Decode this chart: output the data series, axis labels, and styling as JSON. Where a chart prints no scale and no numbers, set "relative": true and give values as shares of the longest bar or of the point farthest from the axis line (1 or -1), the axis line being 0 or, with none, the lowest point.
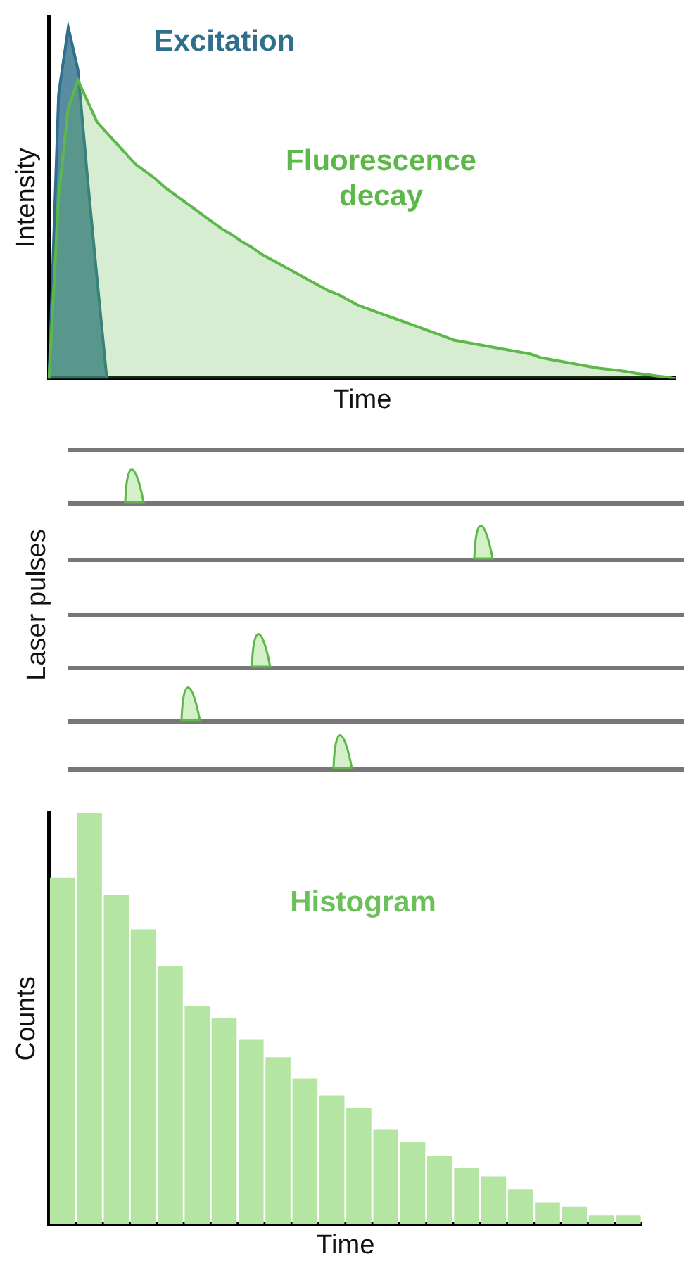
{
  "chart_data": [
    {
      "type": "area",
      "xlabel": "Time",
      "ylabel": "Intensity",
      "relative": true,
      "legend": false,
      "categories": [
        null,
        null,
        null,
        null,
        null,
        null,
        null,
        null,
        null,
        null,
        null,
        null,
        null,
        null,
        null,
        null,
        null,
        null,
        null,
        null,
        null,
        null,
        null,
        null,
        null,
        null,
        null,
        null,
        null,
        null,
        null,
        null,
        null,
        null,
        null,
        null,
        null,
        null,
        null,
        null,
        null,
        null,
        null,
        null,
        null,
        null,
        null,
        null,
        null,
        null,
        null,
        null,
        null,
        null,
        null,
        null,
        null,
        null,
        null,
        null,
        null,
        null,
        null,
        null,
        null,
        null
      ],
      "series": [
        {
          "name": "Fluorescence decay",
          "color": "#5cb848",
          "values": [
            0,
            0.52,
            0.77,
            0.85,
            0.79,
            0.73,
            0.7,
            0.67,
            0.64,
            0.61,
            0.59,
            0.57,
            0.545,
            0.525,
            0.505,
            0.485,
            0.465,
            0.445,
            0.425,
            0.41,
            0.39,
            0.375,
            0.355,
            0.34,
            0.325,
            0.31,
            0.295,
            0.28,
            0.265,
            0.25,
            0.24,
            0.225,
            0.21,
            0.2,
            0.19,
            0.18,
            0.17,
            0.16,
            0.15,
            0.14,
            0.13,
            0.12,
            0.11,
            0.105,
            0.1,
            0.095,
            0.09,
            0.085,
            0.08,
            0.075,
            0.07,
            0.06,
            0.055,
            0.05,
            0.045,
            0.04,
            0.035,
            0.03,
            0.027,
            0.024,
            0.02,
            0.015,
            0.012,
            0.008,
            0.005,
            0
          ]
        },
        {
          "name": "Excitation",
          "color": "#2f6f8c",
          "values": [
            0,
            0.81,
            1,
            0.88,
            0.57,
            0.28,
            0,
            null,
            null,
            null,
            null,
            null,
            null,
            null,
            null,
            null,
            null,
            null,
            null,
            null,
            null,
            null,
            null,
            null,
            null,
            null,
            null,
            null,
            null,
            null,
            null,
            null,
            null,
            null,
            null,
            null,
            null,
            null,
            null,
            null,
            null,
            null,
            null,
            null,
            null,
            null,
            null,
            null,
            null,
            null,
            null,
            null,
            null,
            null,
            null,
            null,
            null,
            null,
            null,
            null,
            null,
            null,
            null,
            null,
            null,
            null
          ]
        }
      ]
    },
    {
      "type": "other",
      "ylabel": "Laser pulses"
    },
    {
      "type": "bar",
      "xlabel": "Time",
      "ylabel": "Counts",
      "relative": true,
      "legend": false,
      "annotations": [
        "Histogram"
      ],
      "categories": [
        null,
        null,
        null,
        null,
        null,
        null,
        null,
        null,
        null,
        null,
        null,
        null,
        null,
        null,
        null,
        null,
        null,
        null,
        null,
        null,
        null,
        null
      ],
      "color": "#b5e5a3",
      "values": [
        0.843,
        1,
        0.801,
        0.717,
        0.627,
        0.531,
        0.501,
        0.448,
        0.406,
        0.354,
        0.313,
        0.283,
        0.231,
        0.199,
        0.165,
        0.136,
        0.116,
        0.084,
        0.053,
        0.042,
        0.021,
        0.021
      ]
    }
  ]
}
